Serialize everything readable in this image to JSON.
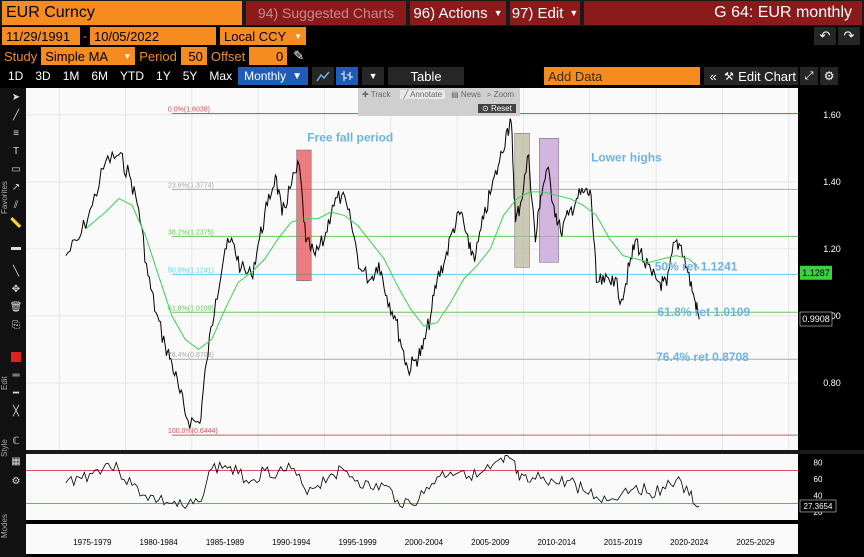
{
  "header": {
    "security": "EUR Curncy",
    "suggested_charts": "94) Suggested Charts",
    "actions": "96) Actions",
    "edit": "97) Edit",
    "title": "G 64: EUR monthly"
  },
  "range": {
    "start": "11/29/1991",
    "sep": "-",
    "end": "10/05/2022",
    "currency": "Local CCY"
  },
  "study": {
    "label": "Study",
    "name": "Simple MA",
    "period_label": "Period",
    "period": "50",
    "offset_label": "Offset",
    "offset": "0"
  },
  "toolbar": {
    "periods": [
      "1D",
      "3D",
      "1M",
      "6M",
      "YTD",
      "1Y",
      "5Y",
      "Max"
    ],
    "frequency": "Monthly",
    "table": "Table",
    "add_data": "Add Data",
    "edit_chart": "Edit Chart"
  },
  "tools_popup": {
    "track": "Track",
    "annotate": "Annotate",
    "news": "News",
    "zoom": "Zoom",
    "reset": "Reset"
  },
  "side_labels": {
    "favorites": "Favorites",
    "edit": "Edit",
    "style": "Style",
    "modes": "Modes"
  },
  "chart_data": {
    "type": "line",
    "title": "",
    "x_ticks": [
      "1975-1979",
      "1980-1984",
      "1985-1989",
      "1990-1994",
      "1995-1999",
      "2000-2004",
      "2005-2009",
      "2010-2014",
      "2015-2019",
      "2020-2024",
      "2025-2029"
    ],
    "y_ticks": [
      "1.60",
      "1.40",
      "1.20",
      "1.00",
      "0.80"
    ],
    "ylim": [
      0.6,
      1.68
    ],
    "last_price": "1.1287",
    "current_price": "0.9908",
    "series": [
      {
        "name": "EUR monthly",
        "color": "#000000",
        "x": [
          1975.0,
          1976.0,
          1977.0,
          1978.0,
          1979.0,
          1979.8,
          1980.5,
          1981.2,
          1981.8,
          1982.5,
          1983.0,
          1983.6,
          1984.2,
          1985.1,
          1985.6,
          1986.3,
          1987.0,
          1987.6,
          1988.2,
          1989.0,
          1989.6,
          1990.2,
          1990.8,
          1991.3,
          1991.9,
          1992.6,
          1993.1,
          1993.8,
          1994.5,
          1995.1,
          1995.8,
          1996.5,
          1997.2,
          1998.0,
          1998.6,
          1999.2,
          1999.8,
          2000.4,
          2000.8,
          2001.4,
          2001.9,
          2002.5,
          2003.0,
          2003.6,
          2004.2,
          2004.8,
          2005.4,
          2005.9,
          2006.5,
          2007.1,
          2007.7,
          2008.3,
          2008.6,
          2008.9,
          2009.3,
          2009.9,
          2010.4,
          2010.8,
          2011.3,
          2011.8,
          2012.3,
          2012.9,
          2013.5,
          2014.1,
          2014.6,
          2015.0,
          2015.6,
          2016.2,
          2016.9,
          2017.5,
          2018.0,
          2018.6,
          2019.2,
          2019.8,
          2020.3,
          2020.9,
          2021.4,
          2021.9,
          2022.4,
          2022.75
        ],
        "y": [
          1.18,
          1.23,
          1.33,
          1.46,
          1.48,
          1.42,
          1.32,
          1.12,
          1.01,
          0.91,
          0.86,
          0.77,
          0.69,
          0.68,
          0.86,
          1.05,
          1.2,
          1.22,
          1.14,
          1.12,
          1.23,
          1.33,
          1.42,
          1.3,
          1.38,
          1.45,
          1.22,
          1.18,
          1.23,
          1.33,
          1.36,
          1.28,
          1.14,
          1.11,
          1.16,
          1.06,
          1.0,
          0.9,
          0.84,
          0.87,
          0.9,
          1.0,
          1.11,
          1.17,
          1.26,
          1.31,
          1.2,
          1.18,
          1.29,
          1.38,
          1.46,
          1.56,
          1.57,
          1.28,
          1.34,
          1.48,
          1.22,
          1.36,
          1.44,
          1.33,
          1.25,
          1.3,
          1.35,
          1.37,
          1.36,
          1.1,
          1.1,
          1.12,
          1.05,
          1.15,
          1.23,
          1.16,
          1.12,
          1.1,
          1.09,
          1.22,
          1.21,
          1.13,
          1.05,
          0.99
        ]
      },
      {
        "name": "Simple MA 50",
        "color": "#39d353",
        "x": [
          1976.5,
          1978.0,
          1979.0,
          1980.0,
          1981.0,
          1982.0,
          1983.0,
          1984.0,
          1985.0,
          1986.0,
          1987.0,
          1988.0,
          1989.0,
          1990.0,
          1991.0,
          1992.0,
          1993.0,
          1994.0,
          1995.0,
          1996.0,
          1997.0,
          1998.0,
          1999.0,
          2000.0,
          2001.0,
          2002.0,
          2003.0,
          2004.0,
          2005.0,
          2006.0,
          2007.0,
          2008.0,
          2009.0,
          2010.0,
          2011.0,
          2012.0,
          2013.0,
          2014.0,
          2015.0,
          2016.0,
          2017.0,
          2018.0,
          2019.0,
          2020.0,
          2021.0,
          2022.0,
          2022.75
        ],
        "y": [
          1.26,
          1.31,
          1.35,
          1.33,
          1.24,
          1.12,
          1.0,
          0.93,
          0.9,
          0.93,
          1.02,
          1.1,
          1.13,
          1.17,
          1.23,
          1.28,
          1.29,
          1.29,
          1.31,
          1.3,
          1.27,
          1.22,
          1.17,
          1.09,
          1.02,
          0.97,
          0.98,
          1.04,
          1.11,
          1.15,
          1.2,
          1.3,
          1.35,
          1.37,
          1.37,
          1.36,
          1.35,
          1.33,
          1.3,
          1.23,
          1.18,
          1.17,
          1.16,
          1.17,
          1.18,
          1.17,
          1.14
        ]
      }
    ],
    "fib_levels": [
      {
        "label": "0.0%(1.6038)",
        "value": 1.6038,
        "color": "#e0505a"
      },
      {
        "label": "23.6%(1.3774)",
        "value": 1.3774,
        "color": "#aaaaaa"
      },
      {
        "label": "38.2%(1.2375)",
        "value": 1.2375,
        "color": "#6ac85a"
      },
      {
        "label": "50.0%(1.1241)",
        "value": 1.1241,
        "color": "#5ad6e6"
      },
      {
        "label": "61.8%(1.0109)",
        "value": 1.0109,
        "color": "#6ac85a"
      },
      {
        "label": "76.4%(0.8708)",
        "value": 0.8708,
        "color": "#aaaaaa"
      },
      {
        "label": "100.0%(0.6444)",
        "value": 0.6444,
        "color": "#e0505a"
      }
    ],
    "annotations": [
      {
        "text": "Free fall period",
        "color": "#6fb2e6"
      },
      {
        "text": "Lower highs",
        "color": "#6fb2e6"
      },
      {
        "text": "50% ret 1.1241",
        "color": "#6fb2e6"
      },
      {
        "text": "61.8% ret 1.0109",
        "color": "#6fb2e6"
      },
      {
        "text": "76.4% ret 0.8708",
        "color": "#6fb2e6"
      }
    ],
    "boxes": [
      {
        "x0": 1992.4,
        "x1": 1993.5,
        "y0": 1.105,
        "y1": 1.495,
        "color": "#e8505a"
      },
      {
        "x0": 2008.85,
        "x1": 2009.95,
        "y0": 1.145,
        "y1": 1.545,
        "color": "#bdb8a0"
      },
      {
        "x0": 2010.7,
        "x1": 2012.15,
        "y0": 1.16,
        "y1": 1.53,
        "color": "#c79ed6"
      }
    ],
    "rsi": {
      "y_ticks": [
        "80",
        "60",
        "40",
        "20"
      ],
      "current": "27.3654",
      "upper": 70,
      "lower": 30,
      "x": [
        1975.0,
        1976.0,
        1977.0,
        1978.0,
        1979.0,
        1980.0,
        1981.0,
        1982.0,
        1983.0,
        1984.0,
        1985.0,
        1986.0,
        1987.0,
        1988.0,
        1989.0,
        1990.0,
        1991.0,
        1992.0,
        1993.0,
        1994.0,
        1995.0,
        1996.0,
        1997.0,
        1998.0,
        1999.0,
        2000.0,
        2001.0,
        2002.0,
        2003.0,
        2004.0,
        2005.0,
        2006.0,
        2007.0,
        2008.0,
        2008.6,
        2009.2,
        2010.0,
        2011.0,
        2012.0,
        2013.0,
        2014.0,
        2015.0,
        2016.0,
        2017.0,
        2018.0,
        2019.0,
        2020.0,
        2021.0,
        2022.0,
        2022.75
      ],
      "y": [
        55,
        62,
        66,
        78,
        70,
        52,
        40,
        34,
        30,
        24,
        32,
        72,
        76,
        66,
        58,
        70,
        68,
        72,
        48,
        52,
        66,
        70,
        58,
        48,
        52,
        34,
        30,
        42,
        62,
        68,
        70,
        62,
        72,
        80,
        84,
        58,
        56,
        62,
        54,
        58,
        46,
        38,
        34,
        44,
        52,
        42,
        50,
        58,
        40,
        27
      ]
    }
  }
}
